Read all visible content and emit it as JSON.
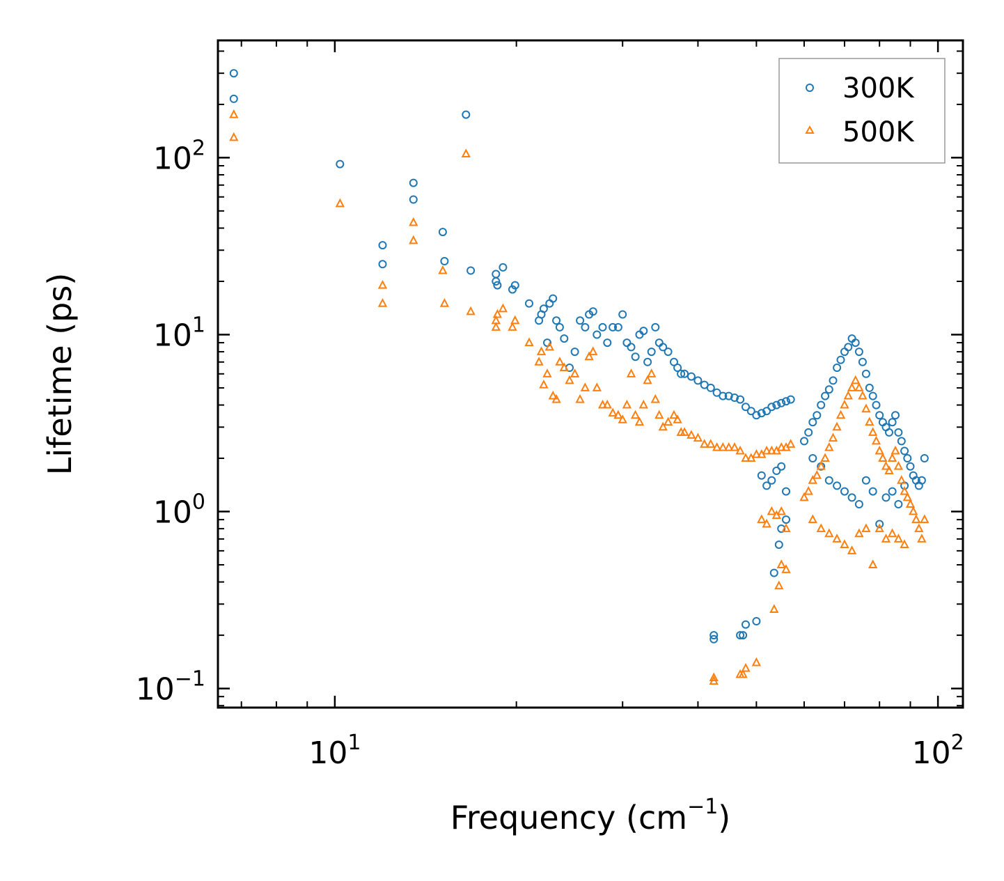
{
  "chart_data": {
    "type": "scatter",
    "title": "",
    "xlabel": "Frequency (cm",
    "xlabel_sup": "−1",
    "xlabel_suffix": ")",
    "ylabel": "Lifetime (ps)",
    "xscale": "log",
    "yscale": "log",
    "xlim": [
      6.4,
      110
    ],
    "ylim": [
      0.078,
      460
    ],
    "x_ticks": [
      {
        "value": 10,
        "base": "10",
        "exp": "1"
      },
      {
        "value": 100,
        "base": "10",
        "exp": "2"
      }
    ],
    "y_ticks": [
      {
        "value": 0.1,
        "base": "10",
        "exp": "−1"
      },
      {
        "value": 1,
        "base": "10",
        "exp": "0"
      },
      {
        "value": 10,
        "base": "10",
        "exp": "1"
      },
      {
        "value": 100,
        "base": "10",
        "exp": "2"
      }
    ],
    "legend_position": "top-right",
    "series": [
      {
        "name": "300K",
        "marker": "circle",
        "color": "#1f77b4",
        "points": [
          [
            6.8,
            300
          ],
          [
            6.8,
            215
          ],
          [
            10.2,
            92
          ],
          [
            12,
            32
          ],
          [
            12,
            25
          ],
          [
            13.5,
            72
          ],
          [
            13.5,
            58
          ],
          [
            15.1,
            38
          ],
          [
            15.2,
            26
          ],
          [
            16.5,
            175
          ],
          [
            16.8,
            23
          ],
          [
            18.5,
            20
          ],
          [
            18.5,
            22
          ],
          [
            18.6,
            19
          ],
          [
            19,
            24
          ],
          [
            19.7,
            18
          ],
          [
            19.9,
            19
          ],
          [
            21,
            15
          ],
          [
            21.8,
            12
          ],
          [
            22,
            13
          ],
          [
            22.2,
            14
          ],
          [
            22.5,
            9
          ],
          [
            22.7,
            15
          ],
          [
            23,
            16
          ],
          [
            23.3,
            12
          ],
          [
            23.6,
            11
          ],
          [
            24,
            9.5
          ],
          [
            24.5,
            6.5
          ],
          [
            25,
            8
          ],
          [
            25.5,
            12
          ],
          [
            26,
            11
          ],
          [
            26.4,
            13
          ],
          [
            26.8,
            13.5
          ],
          [
            27.2,
            10
          ],
          [
            27.8,
            11
          ],
          [
            28.3,
            9
          ],
          [
            28.9,
            11
          ],
          [
            29.5,
            11
          ],
          [
            30,
            13
          ],
          [
            30.5,
            9
          ],
          [
            31,
            8.5
          ],
          [
            31.5,
            7.5
          ],
          [
            32,
            10
          ],
          [
            32.5,
            10.5
          ],
          [
            33,
            7
          ],
          [
            33.5,
            8
          ],
          [
            34,
            11
          ],
          [
            34.5,
            9
          ],
          [
            35,
            8.5
          ],
          [
            35.7,
            8
          ],
          [
            36.5,
            7
          ],
          [
            37,
            6.5
          ],
          [
            37.5,
            6
          ],
          [
            38,
            6
          ],
          [
            39,
            5.8
          ],
          [
            40,
            5.5
          ],
          [
            41,
            5.2
          ],
          [
            42,
            5
          ],
          [
            43,
            4.7
          ],
          [
            44,
            4.5
          ],
          [
            45,
            4.5
          ],
          [
            46,
            4.4
          ],
          [
            47,
            4.3
          ],
          [
            48,
            3.9
          ],
          [
            49,
            3.7
          ],
          [
            50,
            3.5
          ],
          [
            51,
            3.6
          ],
          [
            52,
            3.7
          ],
          [
            53,
            3.9
          ],
          [
            54,
            4
          ],
          [
            55,
            4.1
          ],
          [
            56,
            4.2
          ],
          [
            57,
            4.3
          ],
          [
            47,
            0.2
          ],
          [
            47.5,
            0.2
          ],
          [
            48,
            0.23
          ],
          [
            50,
            0.24
          ],
          [
            42.5,
            0.19
          ],
          [
            42.5,
            0.2
          ],
          [
            51,
            1.6
          ],
          [
            52,
            1.4
          ],
          [
            53,
            1.5
          ],
          [
            54,
            1.7
          ],
          [
            55,
            1.8
          ],
          [
            56,
            1.3
          ],
          [
            54.5,
            0.65
          ],
          [
            53.5,
            0.45
          ],
          [
            55,
            0.8
          ],
          [
            56,
            0.9
          ],
          [
            60,
            2.5
          ],
          [
            61,
            2.8
          ],
          [
            62,
            3.2
          ],
          [
            63,
            3.5
          ],
          [
            64,
            4
          ],
          [
            65,
            4.5
          ],
          [
            66,
            4.9
          ],
          [
            67,
            5.5
          ],
          [
            68,
            6.5
          ],
          [
            69,
            7.2
          ],
          [
            70,
            8
          ],
          [
            71,
            8.5
          ],
          [
            72,
            9.5
          ],
          [
            73,
            9
          ],
          [
            74,
            8
          ],
          [
            75,
            7
          ],
          [
            76,
            6
          ],
          [
            77,
            5
          ],
          [
            78,
            4.5
          ],
          [
            79,
            4
          ],
          [
            80,
            3.5
          ],
          [
            81,
            3.2
          ],
          [
            82,
            3
          ],
          [
            83,
            2.8
          ],
          [
            84,
            3.2
          ],
          [
            85,
            3.5
          ],
          [
            86,
            2.8
          ],
          [
            87,
            2.5
          ],
          [
            88,
            2.2
          ],
          [
            89,
            2
          ],
          [
            90,
            1.8
          ],
          [
            91,
            1.6
          ],
          [
            92,
            1.5
          ],
          [
            93,
            1.4
          ],
          [
            94,
            1.5
          ],
          [
            95,
            2
          ],
          [
            62,
            2
          ],
          [
            64,
            1.8
          ],
          [
            66,
            1.5
          ],
          [
            68,
            1.4
          ],
          [
            70,
            1.3
          ],
          [
            72,
            1.2
          ],
          [
            74,
            1.1
          ],
          [
            76,
            1.5
          ],
          [
            78,
            1.3
          ],
          [
            80,
            0.85
          ],
          [
            82,
            1.2
          ],
          [
            84,
            1.3
          ],
          [
            86,
            1.1
          ],
          [
            88,
            1.4
          ]
        ]
      },
      {
        "name": "500K",
        "marker": "triangle",
        "color": "#ff7f0e",
        "points": [
          [
            6.8,
            175
          ],
          [
            6.8,
            130
          ],
          [
            10.2,
            55
          ],
          [
            12,
            19
          ],
          [
            12,
            15
          ],
          [
            13.5,
            43
          ],
          [
            13.5,
            34
          ],
          [
            15.1,
            23
          ],
          [
            15.2,
            15
          ],
          [
            16.5,
            105
          ],
          [
            16.8,
            13.5
          ],
          [
            18.5,
            11
          ],
          [
            18.5,
            12
          ],
          [
            18.6,
            13
          ],
          [
            19,
            14
          ],
          [
            19.7,
            11
          ],
          [
            19.9,
            12
          ],
          [
            21,
            9
          ],
          [
            21.8,
            7
          ],
          [
            22,
            8
          ],
          [
            22.2,
            5.2
          ],
          [
            22.5,
            6
          ],
          [
            22.7,
            8.5
          ],
          [
            23,
            4.5
          ],
          [
            23.3,
            4.3
          ],
          [
            23.6,
            7
          ],
          [
            24,
            6.5
          ],
          [
            24.5,
            5.5
          ],
          [
            25,
            6
          ],
          [
            25.5,
            4.3
          ],
          [
            26,
            5
          ],
          [
            26.4,
            7.5
          ],
          [
            26.8,
            8
          ],
          [
            27.2,
            5
          ],
          [
            27.8,
            4
          ],
          [
            28.3,
            4
          ],
          [
            28.9,
            3.6
          ],
          [
            29.5,
            3.5
          ],
          [
            30,
            3.3
          ],
          [
            30.5,
            4
          ],
          [
            31,
            6
          ],
          [
            31.5,
            3.5
          ],
          [
            32,
            3.2
          ],
          [
            32.5,
            4
          ],
          [
            33,
            5.5
          ],
          [
            33.5,
            6
          ],
          [
            34,
            4.3
          ],
          [
            34.5,
            3.5
          ],
          [
            35,
            3
          ],
          [
            35.7,
            3.2
          ],
          [
            36.5,
            3.5
          ],
          [
            37,
            3.3
          ],
          [
            37.5,
            2.8
          ],
          [
            38,
            2.8
          ],
          [
            39,
            2.7
          ],
          [
            40,
            2.6
          ],
          [
            41,
            2.4
          ],
          [
            42,
            2.4
          ],
          [
            43,
            2.3
          ],
          [
            44,
            2.3
          ],
          [
            45,
            2.3
          ],
          [
            46,
            2.3
          ],
          [
            47,
            2.2
          ],
          [
            48,
            2
          ],
          [
            49,
            2
          ],
          [
            50,
            2.1
          ],
          [
            51,
            2.1
          ],
          [
            52,
            2.2
          ],
          [
            53,
            2.2
          ],
          [
            54,
            2.2
          ],
          [
            55,
            2.3
          ],
          [
            56,
            2.3
          ],
          [
            57,
            2.4
          ],
          [
            47,
            0.12
          ],
          [
            47.5,
            0.12
          ],
          [
            48,
            0.13
          ],
          [
            50,
            0.14
          ],
          [
            42.5,
            0.11
          ],
          [
            42.5,
            0.115
          ],
          [
            51,
            0.9
          ],
          [
            52,
            0.85
          ],
          [
            53,
            1
          ],
          [
            54,
            0.95
          ],
          [
            55,
            1
          ],
          [
            56,
            0.8
          ],
          [
            54.5,
            0.38
          ],
          [
            53.5,
            0.28
          ],
          [
            55,
            0.5
          ],
          [
            56,
            0.47
          ],
          [
            60,
            1.2
          ],
          [
            61,
            1.3
          ],
          [
            62,
            1.5
          ],
          [
            63,
            1.6
          ],
          [
            64,
            1.8
          ],
          [
            65,
            2
          ],
          [
            66,
            2.3
          ],
          [
            67,
            2.6
          ],
          [
            68,
            3
          ],
          [
            69,
            3.5
          ],
          [
            70,
            4
          ],
          [
            71,
            4.5
          ],
          [
            72,
            5
          ],
          [
            73,
            5.5
          ],
          [
            74,
            5
          ],
          [
            75,
            4.5
          ],
          [
            76,
            3.8
          ],
          [
            77,
            3.2
          ],
          [
            78,
            2.8
          ],
          [
            79,
            2.5
          ],
          [
            80,
            2.2
          ],
          [
            81,
            2
          ],
          [
            82,
            1.8
          ],
          [
            83,
            1.7
          ],
          [
            84,
            2
          ],
          [
            85,
            2.2
          ],
          [
            86,
            1.8
          ],
          [
            87,
            1.5
          ],
          [
            88,
            1.3
          ],
          [
            89,
            1.2
          ],
          [
            90,
            1.1
          ],
          [
            91,
            1
          ],
          [
            92,
            0.9
          ],
          [
            93,
            0.8
          ],
          [
            94,
            0.7
          ],
          [
            95,
            0.9
          ],
          [
            62,
            0.9
          ],
          [
            64,
            0.8
          ],
          [
            66,
            0.75
          ],
          [
            68,
            0.7
          ],
          [
            70,
            0.65
          ],
          [
            72,
            0.6
          ],
          [
            74,
            0.75
          ],
          [
            76,
            0.8
          ],
          [
            78,
            0.5
          ],
          [
            80,
            0.8
          ],
          [
            82,
            0.7
          ],
          [
            84,
            0.75
          ],
          [
            86,
            0.7
          ],
          [
            88,
            0.65
          ]
        ]
      }
    ]
  }
}
